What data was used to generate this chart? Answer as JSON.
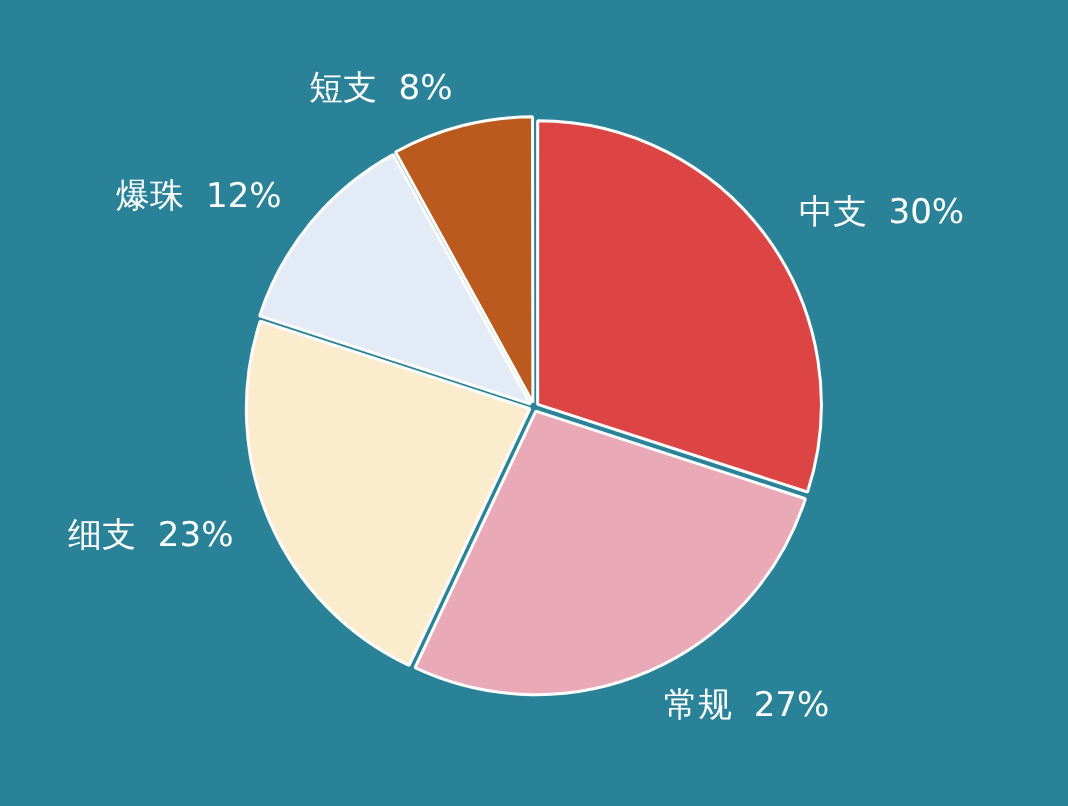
{
  "chart_data": {
    "type": "pie",
    "categories": [
      "中支",
      "常规",
      "细支",
      "爆珠",
      "短支"
    ],
    "values": [
      30,
      27,
      23,
      12,
      8
    ],
    "value_labels": [
      "30%",
      "27%",
      "23%",
      "12%",
      "8%"
    ],
    "colors": [
      "#dd4444",
      "#eaa9b6",
      "#fbeccd",
      "#e3ecf6",
      "#bb5a1e"
    ],
    "legend": false
  }
}
